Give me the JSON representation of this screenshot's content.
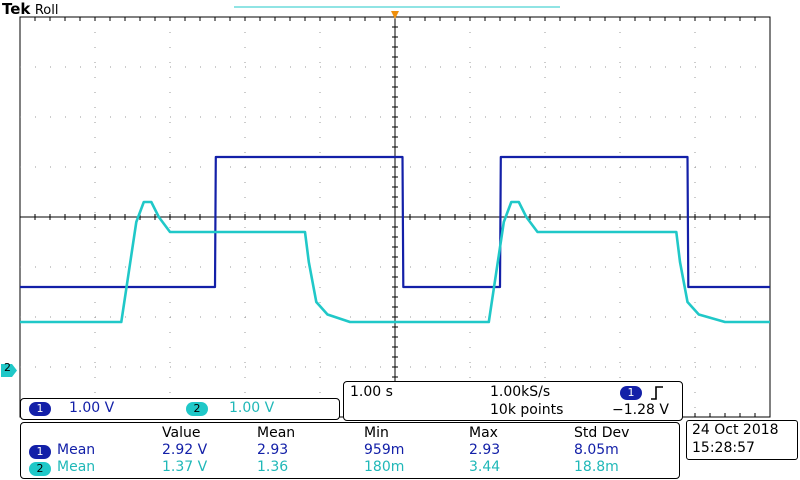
{
  "header": {
    "brand": "Tek",
    "mode": "Roll"
  },
  "channel_readout": {
    "ch1": {
      "badge": "1",
      "scale": "1.00 V"
    },
    "ch2": {
      "badge": "2",
      "scale": "1.00 V"
    }
  },
  "timebase": {
    "time_per_div": "1.00 s",
    "sample_rate": "1.00kS/s",
    "record_length": "10k points",
    "trigger_channel": "1",
    "trigger_slope_icon": "rising-edge-icon",
    "trigger_level": "−1.28 V"
  },
  "channel_marker": {
    "label": "2"
  },
  "measurements": {
    "headers": [
      "Value",
      "Mean",
      "Min",
      "Max",
      "Std Dev"
    ],
    "rows": [
      {
        "channel": "1",
        "label": "Mean",
        "value": "2.92 V",
        "mean": "2.93",
        "min": "959m",
        "max": "2.93",
        "std_dev": "8.05m"
      },
      {
        "channel": "2",
        "label": "Mean",
        "value": "1.37 V",
        "mean": "1.36",
        "min": "180m",
        "max": "3.44",
        "std_dev": "18.8m"
      }
    ]
  },
  "datetime": {
    "date": "24 Oct  2018",
    "time": "15:28:57"
  },
  "colors": {
    "ch1": "#1320a8",
    "ch2": "#20c8c8",
    "trigger_marker": "#f0900c"
  },
  "chart_data": {
    "type": "line",
    "x_unit": "div",
    "xlim": [
      0,
      10
    ],
    "ylim": [
      -4,
      4
    ],
    "series": [
      {
        "name": "1",
        "x": [
          0,
          2.6,
          2.61,
          5.1,
          5.11,
          6.4,
          6.41,
          8.9,
          8.91,
          10
        ],
        "y": [
          -1.4,
          -1.4,
          1.2,
          1.2,
          -1.4,
          -1.4,
          1.2,
          1.2,
          -1.4,
          -1.4
        ]
      },
      {
        "name": "2",
        "x": [
          0,
          1.35,
          1.55,
          1.65,
          1.75,
          1.85,
          2.0,
          3.8,
          3.85,
          3.95,
          4.1,
          4.4,
          6.25,
          6.45,
          6.55,
          6.65,
          6.75,
          6.9,
          8.75,
          8.8,
          8.9,
          9.05,
          9.4,
          10
        ],
        "y": [
          -2.1,
          -2.1,
          -0.1,
          0.3,
          0.3,
          0.0,
          -0.3,
          -0.3,
          -0.9,
          -1.7,
          -1.95,
          -2.1,
          -2.1,
          -0.1,
          0.3,
          0.3,
          0.0,
          -0.3,
          -0.3,
          -0.9,
          -1.7,
          -1.95,
          -2.1,
          -2.1
        ]
      }
    ]
  }
}
